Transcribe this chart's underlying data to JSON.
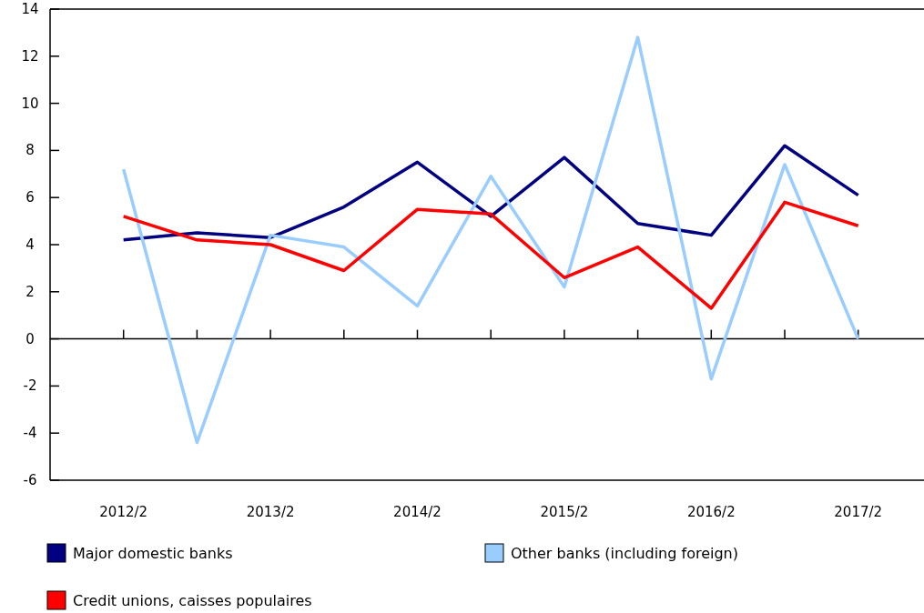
{
  "chart_data": {
    "type": "line",
    "categories": [
      "2012/2",
      null,
      "2013/2",
      null,
      "2014/2",
      null,
      "2015/2",
      null,
      "2016/2",
      null,
      "2017/2"
    ],
    "series": [
      {
        "name": "Major domestic banks",
        "color": "#000080",
        "values": [
          4.2,
          4.5,
          4.3,
          5.6,
          7.5,
          5.2,
          7.7,
          4.9,
          4.4,
          8.2,
          6.1
        ]
      },
      {
        "name": "Other banks (including foreign)",
        "color": "#99ccff",
        "values": [
          7.2,
          -4.4,
          4.4,
          3.9,
          1.4,
          6.9,
          2.2,
          12.8,
          -1.7,
          7.4,
          0.0
        ]
      },
      {
        "name": "Credit unions, caisses populaires",
        "color": "#ff0000",
        "values": [
          5.2,
          4.2,
          4.0,
          2.9,
          5.5,
          5.3,
          2.6,
          3.9,
          1.3,
          5.8,
          4.8
        ]
      }
    ],
    "ylim": [
      -6,
      14
    ],
    "yticks": [
      -6,
      -4,
      -2,
      0,
      2,
      4,
      6,
      8,
      10,
      12,
      14
    ],
    "legend": "bottom",
    "marker": "none",
    "line_style": "solid"
  }
}
